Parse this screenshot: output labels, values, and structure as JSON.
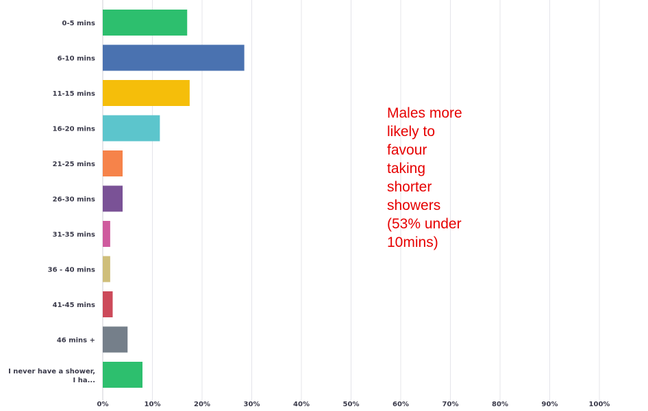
{
  "chart_data": {
    "type": "bar",
    "orientation": "horizontal",
    "categories": [
      "0-5 mins",
      "6-10 mins",
      "11-15 mins",
      "16-20 mins",
      "21-25 mins",
      "26-30 mins",
      "31-35 mins",
      "36 - 40 mins",
      "41-45 mins",
      "46 mins +",
      "I never have a shower, I ha..."
    ],
    "values": [
      17,
      28.5,
      17.5,
      11.5,
      4,
      4,
      1.5,
      1.5,
      2,
      5,
      8
    ],
    "colors": [
      "#2dbf6e",
      "#4a72b0",
      "#f5be0a",
      "#5cc5cc",
      "#f6834a",
      "#7a5296",
      "#cf5b9e",
      "#cfbe7a",
      "#cc4a5a",
      "#757f8a",
      "#2dbf6e"
    ],
    "x_ticks": [
      "0%",
      "10%",
      "20%",
      "30%",
      "40%",
      "50%",
      "60%",
      "70%",
      "80%",
      "90%",
      "100%"
    ],
    "xlim": [
      0,
      100
    ],
    "grid": true,
    "annotation": "Males more\nlikely to\nfavour\ntaking\nshorter\nshowers\n(53% under\n10mins)"
  }
}
